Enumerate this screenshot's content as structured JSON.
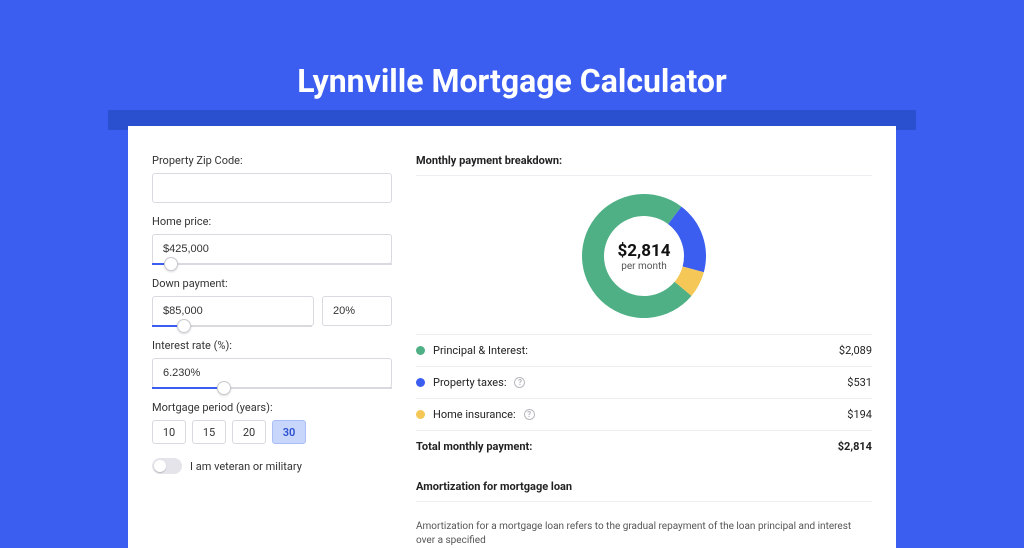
{
  "header": {
    "title": "Lynnville Mortgage Calculator"
  },
  "colors": {
    "page_bg": "#3b5ef0",
    "band": "#2a4fcf",
    "card_bg": "#ffffff",
    "border": "#d9d9df",
    "slider_fill": "#3b5ef0",
    "text": "#333333",
    "muted": "#555555"
  },
  "form": {
    "zip": {
      "label": "Property Zip Code:",
      "value": ""
    },
    "price": {
      "label": "Home price:",
      "value": "$425,000",
      "slider_percent": 8
    },
    "down": {
      "label": "Down payment:",
      "amount": "$85,000",
      "percent": "20%",
      "slider_percent": 20
    },
    "rate": {
      "label": "Interest rate (%):",
      "value": "6.230%",
      "slider_percent": 30
    },
    "period": {
      "label": "Mortgage period (years):",
      "options": [
        "10",
        "15",
        "20",
        "30"
      ],
      "selected": "30"
    },
    "veteran": {
      "label": "I am veteran or military",
      "on": false
    }
  },
  "breakdown": {
    "heading": "Monthly payment breakdown:",
    "center": {
      "amount": "$2,814",
      "sub": "per month"
    },
    "donut": {
      "type": "pie",
      "thickness": 22,
      "slices": [
        {
          "key": "pi",
          "percent": 74.2,
          "color": "#4fb085"
        },
        {
          "key": "tax",
          "percent": 18.9,
          "color": "#3b5ef0"
        },
        {
          "key": "ins",
          "percent": 6.9,
          "color": "#f4c756"
        }
      ],
      "start_angle_deg": 40
    },
    "items": [
      {
        "key": "pi",
        "label": "Principal & Interest:",
        "value": "$2,089",
        "dot": "#4fb085",
        "info": false
      },
      {
        "key": "tax",
        "label": "Property taxes:",
        "value": "$531",
        "dot": "#3b5ef0",
        "info": true
      },
      {
        "key": "ins",
        "label": "Home insurance:",
        "value": "$194",
        "dot": "#f4c756",
        "info": true
      }
    ],
    "total": {
      "label": "Total monthly payment:",
      "value": "$2,814"
    }
  },
  "amortization": {
    "heading": "Amortization for mortgage loan",
    "body": "Amortization for a mortgage loan refers to the gradual repayment of the loan principal and interest over a specified"
  }
}
